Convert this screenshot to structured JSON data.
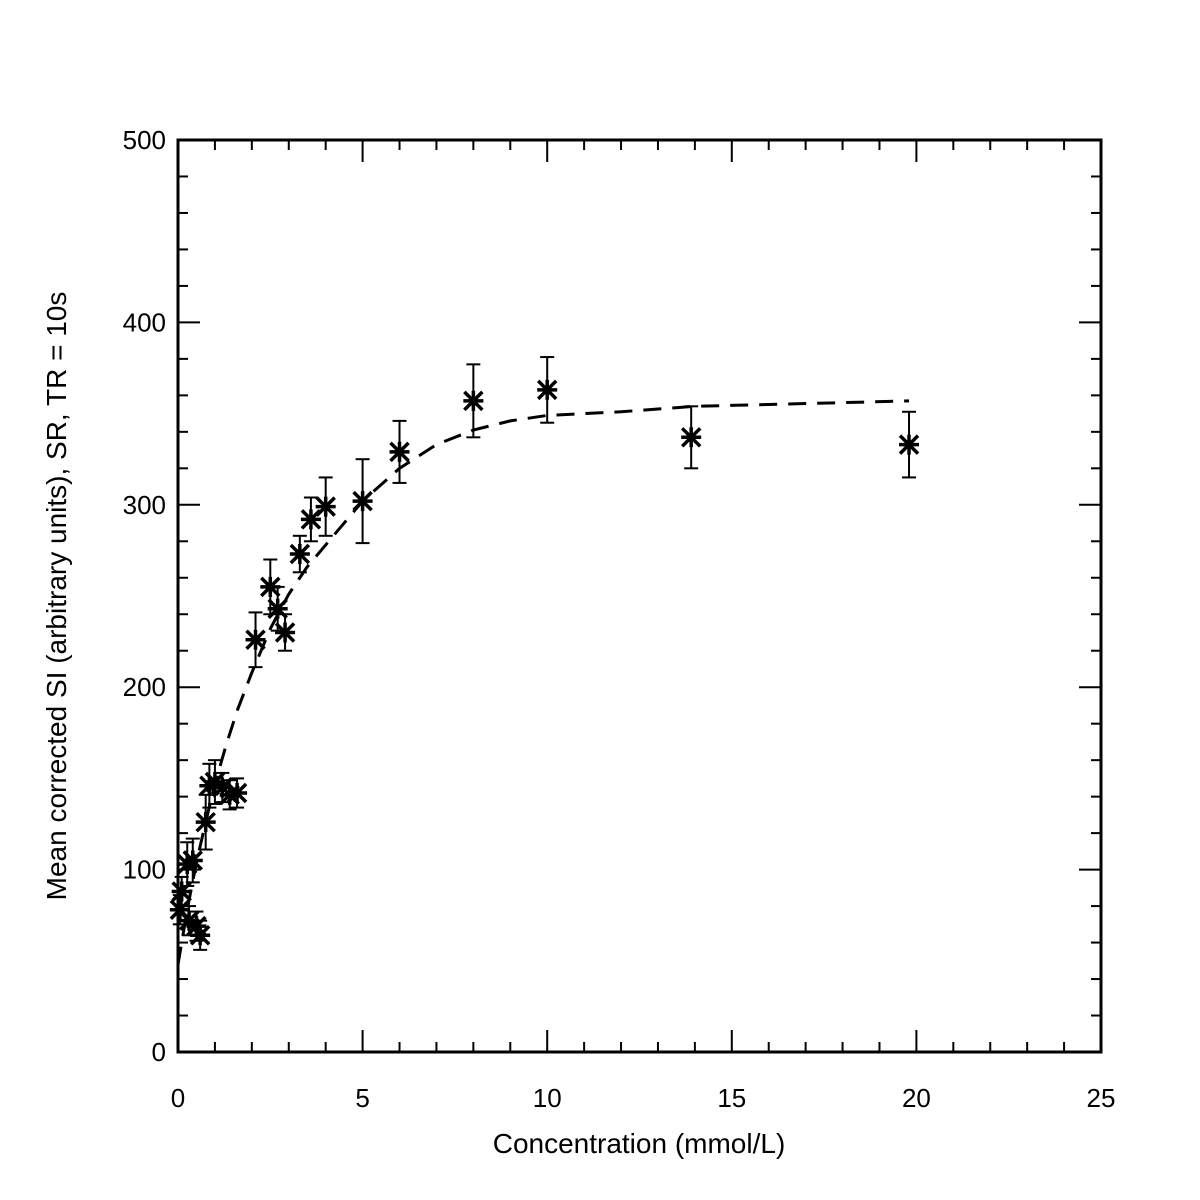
{
  "chart_data": {
    "type": "scatter",
    "title": "",
    "xlabel": "Concentration (mmol/L)",
    "ylabel": "Mean corrected SI (arbitrary units),  SR, TR = 10s",
    "xlim": [
      0,
      25
    ],
    "ylim": [
      0,
      500
    ],
    "x_ticks": [
      0,
      5,
      10,
      15,
      20,
      25
    ],
    "y_ticks": [
      0,
      100,
      200,
      300,
      400,
      500
    ],
    "x_minor_step": 1,
    "y_minor_step": 20,
    "grid": false,
    "legend": "none",
    "marker": "asterisk",
    "points": [
      {
        "x": 0.05,
        "y": 78,
        "err": 8
      },
      {
        "x": 0.1,
        "y": 88,
        "err": 8
      },
      {
        "x": 0.25,
        "y": 103,
        "err": 12
      },
      {
        "x": 0.3,
        "y": 72,
        "err": 8
      },
      {
        "x": 0.4,
        "y": 105,
        "err": 12
      },
      {
        "x": 0.5,
        "y": 69,
        "err": 8
      },
      {
        "x": 0.6,
        "y": 64,
        "err": 8
      },
      {
        "x": 0.75,
        "y": 126,
        "err": 15
      },
      {
        "x": 0.85,
        "y": 146,
        "err": 12
      },
      {
        "x": 1.0,
        "y": 148,
        "err": 12
      },
      {
        "x": 1.2,
        "y": 145,
        "err": 8
      },
      {
        "x": 1.4,
        "y": 141,
        "err": 8
      },
      {
        "x": 1.6,
        "y": 142,
        "err": 8
      },
      {
        "x": 2.1,
        "y": 226,
        "err": 15
      },
      {
        "x": 2.5,
        "y": 255,
        "err": 15
      },
      {
        "x": 2.7,
        "y": 243,
        "err": 12
      },
      {
        "x": 2.9,
        "y": 230,
        "err": 10
      },
      {
        "x": 3.3,
        "y": 273,
        "err": 10
      },
      {
        "x": 3.6,
        "y": 292,
        "err": 12
      },
      {
        "x": 4.0,
        "y": 299,
        "err": 16
      },
      {
        "x": 5.0,
        "y": 302,
        "err": 23
      },
      {
        "x": 6.0,
        "y": 329,
        "err": 17
      },
      {
        "x": 8.0,
        "y": 357,
        "err": 20
      },
      {
        "x": 10.0,
        "y": 363,
        "err": 18
      },
      {
        "x": 13.9,
        "y": 337,
        "err": 17
      },
      {
        "x": 19.8,
        "y": 333,
        "err": 18
      }
    ],
    "fit_curve": {
      "style": "dashed",
      "x": [
        0.0,
        0.25,
        0.5,
        0.75,
        1.0,
        1.3,
        1.6,
        2.0,
        2.5,
        3.0,
        3.5,
        4.0,
        5.0,
        6.0,
        7.0,
        8.0,
        9.0,
        10.0,
        12.0,
        14.0,
        16.0,
        18.0,
        19.8
      ],
      "y": [
        48,
        78,
        104,
        126,
        147,
        168,
        187,
        208,
        232,
        251,
        266,
        278,
        302,
        320,
        333,
        341,
        346,
        349,
        351,
        354,
        355,
        356,
        357
      ]
    }
  }
}
